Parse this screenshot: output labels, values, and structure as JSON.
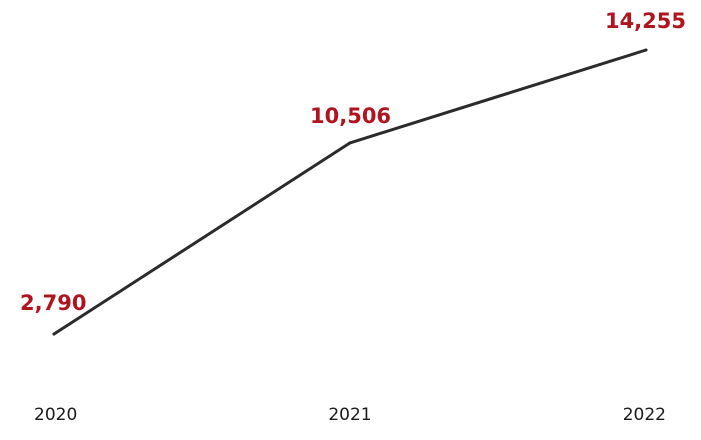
{
  "chart_data": {
    "type": "line",
    "title": "",
    "xlabel": "",
    "ylabel": "",
    "categories": [
      "2020",
      "2021",
      "2022"
    ],
    "series": [
      {
        "values": [
          2790,
          10506,
          14255
        ],
        "data_labels": [
          "2,790",
          "10,506",
          "14,255"
        ]
      }
    ],
    "grid": false,
    "legend": "none",
    "colors": {
      "line": "#2b2b2b",
      "data_label": "#b0141f",
      "tick_label": "#1a1a1a"
    }
  }
}
